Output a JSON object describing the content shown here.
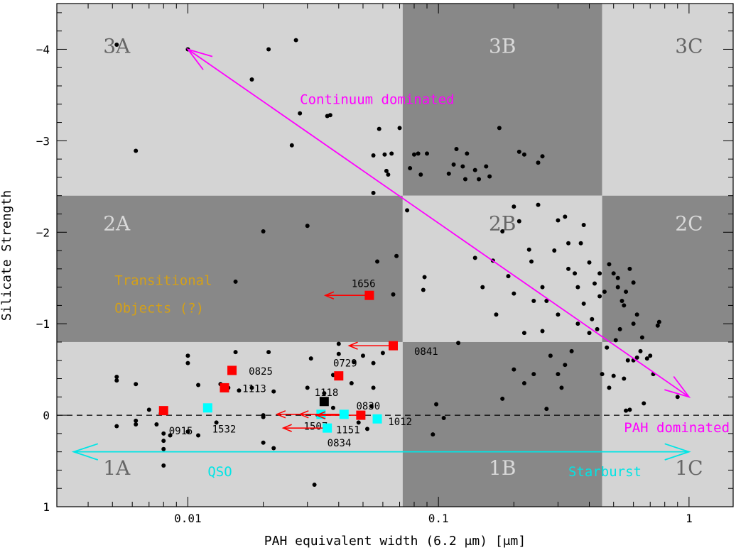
{
  "chart_data": {
    "type": "scatter",
    "xlabel": "PAH equivalent width (6.2 μm) [μm]",
    "ylabel": "Silicate Strength",
    "x_scale": "log",
    "xlim": [
      0.003,
      1.5
    ],
    "ylim": [
      1,
      -4.5
    ],
    "x_ticks": [
      {
        "value": 0.01,
        "label": "0.01"
      },
      {
        "value": 0.1,
        "label": "0.1"
      },
      {
        "value": 1,
        "label": "1"
      }
    ],
    "y_ticks": [
      {
        "value": -4,
        "label": "−4"
      },
      {
        "value": -3,
        "label": "−3"
      },
      {
        "value": -2,
        "label": "−2"
      },
      {
        "value": -1,
        "label": "−1"
      },
      {
        "value": 0,
        "label": "0"
      },
      {
        "value": 1,
        "label": "1"
      }
    ],
    "regions": [
      {
        "label": "3A",
        "x": [
          0.003,
          0.072
        ],
        "y": [
          -4.5,
          -2.4
        ],
        "shade": "light",
        "label_at": [
          0.0052,
          -3.96
        ]
      },
      {
        "label": "3B",
        "x": [
          0.072,
          0.45
        ],
        "y": [
          -4.5,
          -2.4
        ],
        "shade": "dark",
        "label_at": [
          0.18,
          -3.96
        ]
      },
      {
        "label": "3C",
        "x": [
          0.45,
          1.5
        ],
        "y": [
          -4.5,
          -2.4
        ],
        "shade": "light",
        "label_at": [
          1.0,
          -3.96
        ]
      },
      {
        "label": "2A",
        "x": [
          0.003,
          0.072
        ],
        "y": [
          -2.4,
          -0.8
        ],
        "shade": "dark",
        "label_at": [
          0.0052,
          -2.02
        ]
      },
      {
        "label": "2B",
        "x": [
          0.072,
          0.45
        ],
        "y": [
          -2.4,
          -0.8
        ],
        "shade": "light",
        "label_at": [
          0.18,
          -2.02
        ]
      },
      {
        "label": "2C",
        "x": [
          0.45,
          1.5
        ],
        "y": [
          -2.4,
          -0.8
        ],
        "shade": "dark",
        "label_at": [
          1.0,
          -2.02
        ]
      },
      {
        "label": "1A",
        "x": [
          0.003,
          0.072
        ],
        "y": [
          -0.8,
          1.0
        ],
        "shade": "light",
        "label_at": [
          0.0052,
          0.65
        ]
      },
      {
        "label": "1B",
        "x": [
          0.072,
          0.45
        ],
        "y": [
          -0.8,
          1.0
        ],
        "shade": "dark",
        "label_at": [
          0.18,
          0.65
        ]
      },
      {
        "label": "1C",
        "x": [
          0.45,
          1.5
        ],
        "y": [
          -0.8,
          1.0
        ],
        "shade": "light",
        "label_at": [
          1.0,
          0.65
        ]
      }
    ],
    "points": [
      [
        0.0052,
        -4.05
      ],
      [
        0.0062,
        -2.89
      ],
      [
        0.0052,
        -0.42
      ],
      [
        0.0052,
        -0.38
      ],
      [
        0.0052,
        0.12
      ],
      [
        0.0062,
        -0.34
      ],
      [
        0.0062,
        0.06
      ],
      [
        0.0062,
        0.1
      ],
      [
        0.007,
        -0.06
      ],
      [
        0.0075,
        0.1
      ],
      [
        0.0078,
        -0.02
      ],
      [
        0.008,
        0.2
      ],
      [
        0.008,
        0.28
      ],
      [
        0.008,
        0.37
      ],
      [
        0.008,
        0.55
      ],
      [
        0.0085,
        0.22
      ],
      [
        0.01,
        -4.0
      ],
      [
        0.01,
        -0.65
      ],
      [
        0.01,
        -0.57
      ],
      [
        0.01,
        0.18
      ],
      [
        0.011,
        -0.33
      ],
      [
        0.011,
        0.22
      ],
      [
        0.013,
        0.08
      ],
      [
        0.0135,
        -0.34
      ],
      [
        0.0155,
        -1.46
      ],
      [
        0.0155,
        -0.69
      ],
      [
        0.0145,
        -0.3
      ],
      [
        0.016,
        -0.27
      ],
      [
        0.018,
        -3.67
      ],
      [
        0.018,
        -0.3
      ],
      [
        0.021,
        -4.0
      ],
      [
        0.02,
        -2.01
      ],
      [
        0.021,
        -0.69
      ],
      [
        0.022,
        -0.26
      ],
      [
        0.02,
        0.3
      ],
      [
        0.022,
        0.36
      ],
      [
        0.02,
        0.0
      ],
      [
        0.02,
        0.02
      ],
      [
        0.026,
        -2.95
      ],
      [
        0.027,
        -4.1
      ],
      [
        0.028,
        -3.3
      ],
      [
        0.03,
        -2.07
      ],
      [
        0.03,
        -0.3
      ],
      [
        0.031,
        -0.62
      ],
      [
        0.032,
        0.76
      ],
      [
        0.033,
        0.0
      ],
      [
        0.035,
        -0.24
      ],
      [
        0.036,
        -3.27
      ],
      [
        0.037,
        -3.28
      ],
      [
        0.038,
        -0.44
      ],
      [
        0.038,
        -0.08
      ],
      [
        0.04,
        -0.78
      ],
      [
        0.04,
        -0.67
      ],
      [
        0.045,
        -0.35
      ],
      [
        0.046,
        -0.58
      ],
      [
        0.048,
        0.08
      ],
      [
        0.05,
        -0.65
      ],
      [
        0.052,
        0.15
      ],
      [
        0.054,
        -0.1
      ],
      [
        0.055,
        -0.57
      ],
      [
        0.055,
        -0.3
      ],
      [
        0.055,
        -2.84
      ],
      [
        0.055,
        -2.43
      ],
      [
        0.057,
        -1.68
      ],
      [
        0.058,
        -3.13
      ],
      [
        0.06,
        -0.68
      ],
      [
        0.061,
        -2.85
      ],
      [
        0.062,
        -2.67
      ],
      [
        0.063,
        -2.63
      ],
      [
        0.065,
        -2.86
      ],
      [
        0.066,
        -1.32
      ],
      [
        0.068,
        -1.74
      ],
      [
        0.07,
        -3.14
      ],
      [
        0.075,
        -2.24
      ],
      [
        0.077,
        -2.7
      ],
      [
        0.08,
        -2.85
      ],
      [
        0.083,
        -2.86
      ],
      [
        0.085,
        -2.63
      ],
      [
        0.087,
        -1.37
      ],
      [
        0.088,
        -1.51
      ],
      [
        0.09,
        -2.86
      ],
      [
        0.095,
        0.21
      ],
      [
        0.098,
        -0.12
      ],
      [
        0.105,
        0.03
      ],
      [
        0.11,
        -2.64
      ],
      [
        0.115,
        -2.74
      ],
      [
        0.118,
        -2.91
      ],
      [
        0.12,
        -0.79
      ],
      [
        0.125,
        -2.72
      ],
      [
        0.128,
        -2.58
      ],
      [
        0.13,
        -2.86
      ],
      [
        0.14,
        -2.68
      ],
      [
        0.145,
        -2.58
      ],
      [
        0.155,
        -2.72
      ],
      [
        0.16,
        -2.61
      ],
      [
        0.165,
        -1.69
      ],
      [
        0.17,
        -1.1
      ],
      [
        0.175,
        -3.14
      ],
      [
        0.18,
        -2.01
      ],
      [
        0.2,
        -2.28
      ],
      [
        0.21,
        -2.88
      ],
      [
        0.22,
        -2.85
      ],
      [
        0.23,
        -1.81
      ],
      [
        0.235,
        -1.68
      ],
      [
        0.25,
        -2.76
      ],
      [
        0.26,
        -2.83
      ],
      [
        0.27,
        -0.07
      ],
      [
        0.28,
        -0.65
      ],
      [
        0.3,
        -0.45
      ],
      [
        0.31,
        -0.3
      ],
      [
        0.32,
        -2.17
      ],
      [
        0.33,
        -1.88
      ],
      [
        0.35,
        -1.55
      ],
      [
        0.37,
        -1.88
      ],
      [
        0.38,
        -2.08
      ],
      [
        0.4,
        -1.67
      ],
      [
        0.42,
        -1.44
      ],
      [
        0.43,
        -0.94
      ],
      [
        0.45,
        -0.45
      ],
      [
        0.47,
        -0.74
      ],
      [
        0.48,
        -1.65
      ],
      [
        0.5,
        -1.55
      ],
      [
        0.52,
        -1.4
      ],
      [
        0.55,
        -1.2
      ],
      [
        0.58,
        -1.6
      ],
      [
        0.6,
        -1.45
      ],
      [
        0.62,
        -1.1
      ],
      [
        0.65,
        -0.85
      ],
      [
        0.7,
        -0.65
      ],
      [
        0.72,
        -0.45
      ],
      [
        0.75,
        -0.98
      ],
      [
        0.76,
        -1.02
      ],
      [
        0.55,
        -0.4
      ],
      [
        0.5,
        -0.43
      ],
      [
        0.48,
        -0.3
      ],
      [
        0.56,
        -0.05
      ],
      [
        0.58,
        -0.06
      ],
      [
        0.62,
        -0.63
      ],
      [
        0.66,
        -0.13
      ],
      [
        0.9,
        -0.2
      ],
      [
        0.36,
        -1.0
      ],
      [
        0.34,
        -0.7
      ],
      [
        0.32,
        -0.55
      ],
      [
        0.3,
        -1.1
      ],
      [
        0.26,
        -0.92
      ],
      [
        0.24,
        -0.45
      ],
      [
        0.22,
        -0.9
      ],
      [
        0.2,
        -0.5
      ],
      [
        0.19,
        -1.52
      ],
      [
        0.18,
        -0.18
      ],
      [
        0.15,
        -1.4
      ],
      [
        0.14,
        -1.72
      ],
      [
        0.2,
        -1.33
      ],
      [
        0.22,
        -0.35
      ],
      [
        0.26,
        -1.4
      ],
      [
        0.38,
        -1.22
      ],
      [
        0.41,
        -1.05
      ],
      [
        0.44,
        -1.3
      ],
      [
        0.46,
        -1.35
      ],
      [
        0.51,
        -0.82
      ],
      [
        0.53,
        -0.94
      ],
      [
        0.57,
        -0.6
      ],
      [
        0.6,
        -0.6
      ],
      [
        0.29,
        -1.8
      ],
      [
        0.33,
        -1.6
      ],
      [
        0.4,
        -0.9
      ],
      [
        0.27,
        -1.25
      ],
      [
        0.24,
        -1.25
      ],
      [
        0.21,
        -2.12
      ],
      [
        0.25,
        -2.3
      ],
      [
        0.3,
        -2.13
      ],
      [
        0.36,
        -1.4
      ],
      [
        0.44,
        -1.55
      ],
      [
        0.52,
        -1.5
      ],
      [
        0.54,
        -1.25
      ],
      [
        0.56,
        -1.35
      ],
      [
        0.6,
        -1.0
      ],
      [
        0.64,
        -0.7
      ],
      [
        0.68,
        -0.62
      ]
    ],
    "labeled_points": [
      {
        "id": "1656",
        "x": 0.053,
        "y": -1.31,
        "color": "red",
        "upper_limit": true,
        "label_at": [
          0.045,
          -1.44
        ]
      },
      {
        "id": "0841",
        "x": 0.066,
        "y": -0.76,
        "color": "red",
        "upper_limit": true,
        "label_at": [
          0.08,
          -0.7
        ]
      },
      {
        "id": "0825",
        "x": 0.015,
        "y": -0.49,
        "color": "red",
        "upper_limit": false,
        "label_at": [
          0.0175,
          -0.48
        ]
      },
      {
        "id": "1113",
        "x": 0.014,
        "y": -0.3,
        "color": "red",
        "upper_limit": false,
        "label_at": [
          0.0165,
          -0.29
        ]
      },
      {
        "id": "0729",
        "x": 0.04,
        "y": -0.43,
        "color": "red",
        "upper_limit": false,
        "label_at": [
          0.038,
          -0.57
        ]
      },
      {
        "id": "0915",
        "x": 0.008,
        "y": -0.05,
        "color": "red",
        "upper_limit": false,
        "label_at": [
          0.0084,
          0.17
        ]
      },
      {
        "id": "1532",
        "x": 0.012,
        "y": -0.08,
        "color": "cyan",
        "upper_limit": false,
        "label_at": [
          0.0125,
          0.15
        ]
      },
      {
        "id": "1118",
        "x": 0.035,
        "y": -0.15,
        "color": "black",
        "upper_limit": false,
        "label_at": [
          0.032,
          -0.25
        ]
      },
      {
        "id": "1507",
        "x": 0.034,
        "y": -0.01,
        "color": "cyan",
        "upper_limit": true,
        "label_at": [
          0.029,
          0.12
        ]
      },
      {
        "id": "0830",
        "x": 0.049,
        "y": 0.0,
        "color": "red",
        "upper_limit": true,
        "label_at": [
          0.047,
          -0.1
        ]
      },
      {
        "id": "1151",
        "x": 0.036,
        "y": 0.14,
        "color": "cyan",
        "upper_limit": true,
        "label_at": [
          0.039,
          0.16
        ]
      },
      {
        "id": "0834",
        "x": 0.042,
        "y": -0.01,
        "color": "cyan",
        "upper_limit": true,
        "label_at": [
          0.036,
          0.3
        ]
      },
      {
        "id": "1012",
        "x": 0.057,
        "y": 0.04,
        "color": "cyan",
        "upper_limit": false,
        "label_at": [
          0.063,
          0.07
        ]
      }
    ],
    "annotations": [
      {
        "text": "Continuum dominated",
        "x": 0.028,
        "y": -3.45,
        "color": "#ff00ff"
      },
      {
        "text": "PAH dominated",
        "x": 0.55,
        "y": 0.14,
        "color": "#ff00ff"
      },
      {
        "text": "Transitional",
        "x": 0.0051,
        "y": -1.47,
        "color": "#d4a017"
      },
      {
        "text": "Objects (?)",
        "x": 0.0051,
        "y": -1.17,
        "color": "#d4a017"
      },
      {
        "text": "QSO",
        "x": 0.012,
        "y": 0.62,
        "color": "#00e5e5"
      },
      {
        "text": "Starburst",
        "x": 0.33,
        "y": 0.62,
        "color": "#00e5e5"
      }
    ],
    "arrows": [
      {
        "name": "continuum-pah-arrow",
        "from": [
          0.01,
          -4.0
        ],
        "to": [
          1.0,
          -0.2
        ],
        "double": true,
        "color": "#ff00ff"
      },
      {
        "name": "qso-starburst-arrow",
        "from": [
          0.0035,
          0.4
        ],
        "to": [
          1.0,
          0.4
        ],
        "double": true,
        "color": "#00e5e5"
      }
    ],
    "zero_line": 0,
    "colors": {
      "light_region": "#d4d4d4",
      "dark_region": "#888888",
      "red_marker": "#ff0000",
      "cyan_marker": "#00ffff",
      "black_marker": "#000000",
      "region_label": "#666666",
      "region_label_dark": "#d9d9d9"
    }
  }
}
